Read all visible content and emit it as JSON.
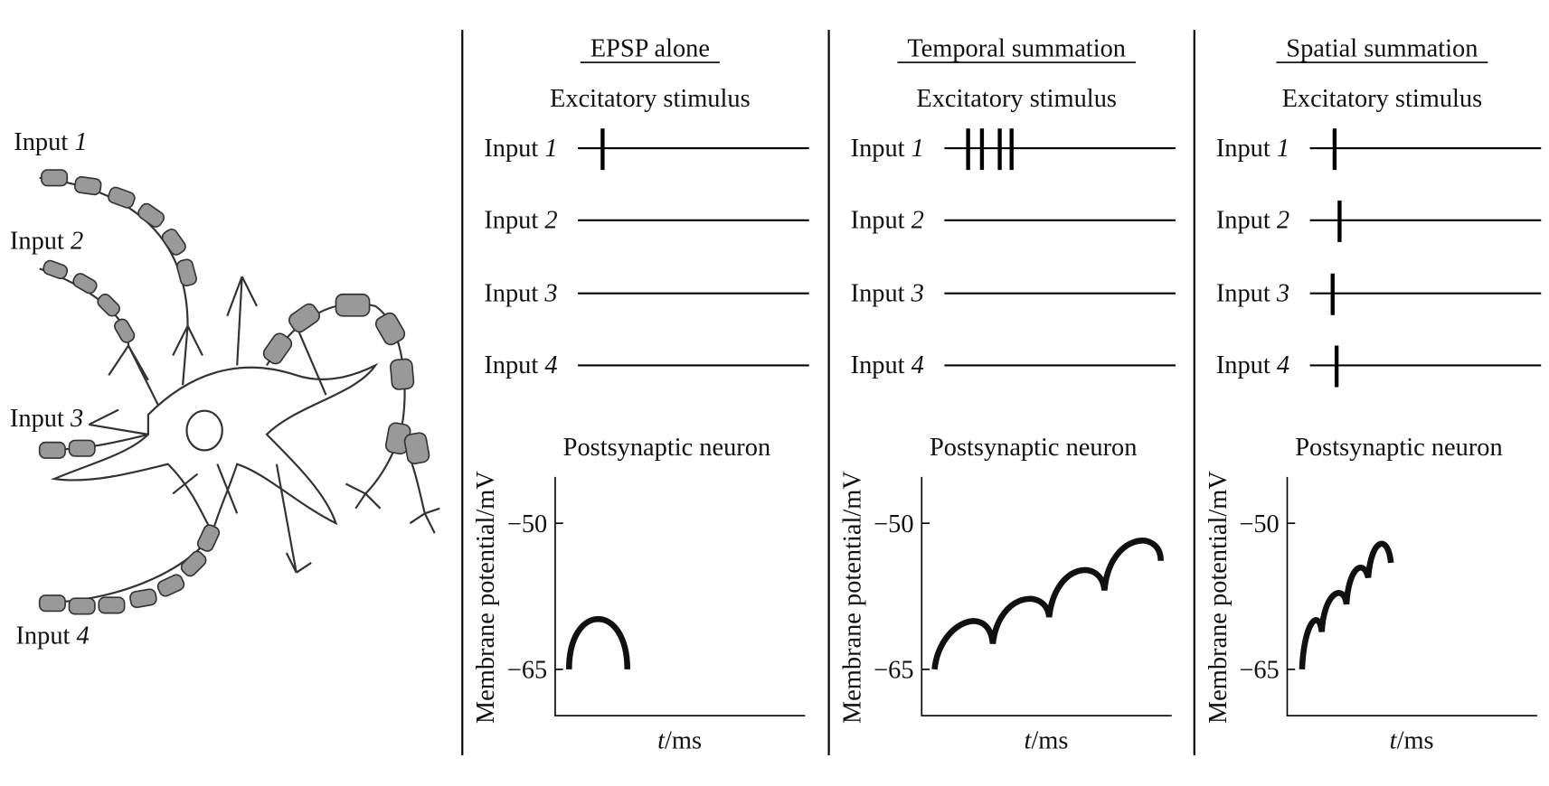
{
  "neuron": {
    "inputs": [
      {
        "label": "Input",
        "number": "1"
      },
      {
        "label": "Input",
        "number": "2"
      },
      {
        "label": "Input",
        "number": "3"
      },
      {
        "label": "Input",
        "number": "4"
      }
    ]
  },
  "panels": [
    {
      "title": "EPSP alone",
      "stimulus_heading": "Excitatory stimulus",
      "inputs": [
        {
          "label": "Input",
          "number": "1"
        },
        {
          "label": "Input",
          "number": "2"
        },
        {
          "label": "Input",
          "number": "3"
        },
        {
          "label": "Input",
          "number": "4"
        }
      ],
      "response_heading": "Postsynaptic neuron",
      "y_label": "Membrane potential/mV",
      "y_ticks": [
        "−50",
        "−65"
      ],
      "x_label": {
        "variable": "t",
        "unit": "/ms"
      }
    },
    {
      "title": "Temporal summation",
      "stimulus_heading": "Excitatory stimulus",
      "inputs": [
        {
          "label": "Input",
          "number": "1"
        },
        {
          "label": "Input",
          "number": "2"
        },
        {
          "label": "Input",
          "number": "3"
        },
        {
          "label": "Input",
          "number": "4"
        }
      ],
      "response_heading": "Postsynaptic neuron",
      "y_label": "Membrane potential/mV",
      "y_ticks": [
        "−50",
        "−65"
      ],
      "x_label": {
        "variable": "t",
        "unit": "/ms"
      }
    },
    {
      "title": "Spatial summation",
      "stimulus_heading": "Excitatory stimulus",
      "inputs": [
        {
          "label": "Input",
          "number": "1"
        },
        {
          "label": "Input",
          "number": "2"
        },
        {
          "label": "Input",
          "number": "3"
        },
        {
          "label": "Input",
          "number": "4"
        }
      ],
      "response_heading": "Postsynaptic neuron",
      "y_label": "Membrane potential/mV",
      "y_ticks": [
        "−50",
        "−65"
      ],
      "x_label": {
        "variable": "t",
        "unit": "/ms"
      }
    }
  ]
}
